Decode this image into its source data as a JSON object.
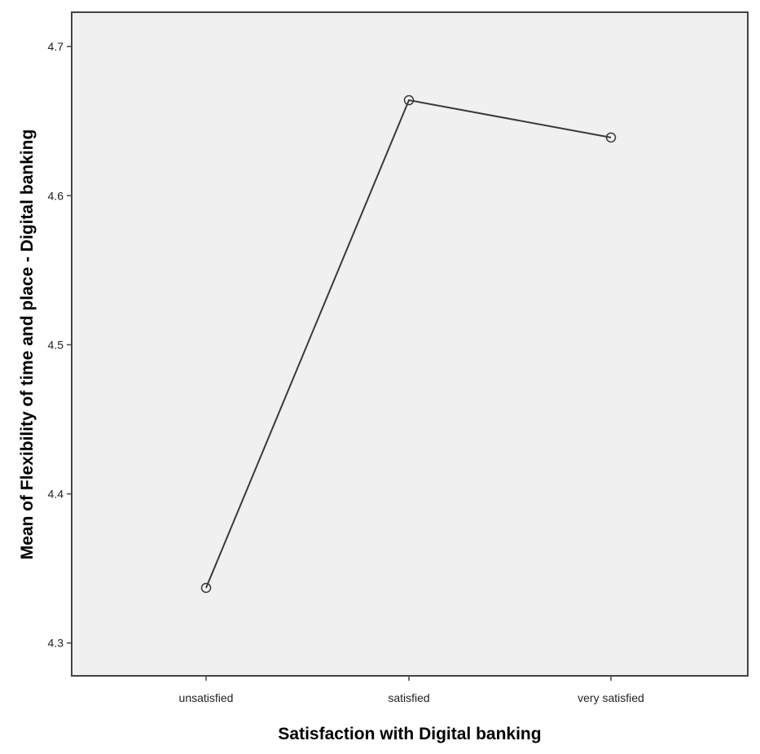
{
  "chart_data": {
    "type": "line",
    "xlabel": "Satisfaction with Digital banking",
    "ylabel": "Mean of Flexibility of time and place - Digital banking",
    "categories": [
      "unsatisfied",
      "satisfied",
      "very satisfied"
    ],
    "series": [
      {
        "values": [
          4.337,
          4.664,
          4.639
        ]
      }
    ],
    "ylim": [
      4.278,
      4.723
    ],
    "yticks": [
      "4.3",
      "4.4",
      "4.5",
      "4.6",
      "4.7"
    ],
    "grid": false,
    "markers": "open-circle",
    "colors": {
      "plot_background": "#f0f0f0",
      "line": "#3a3a3a",
      "frame": "#444444"
    }
  }
}
